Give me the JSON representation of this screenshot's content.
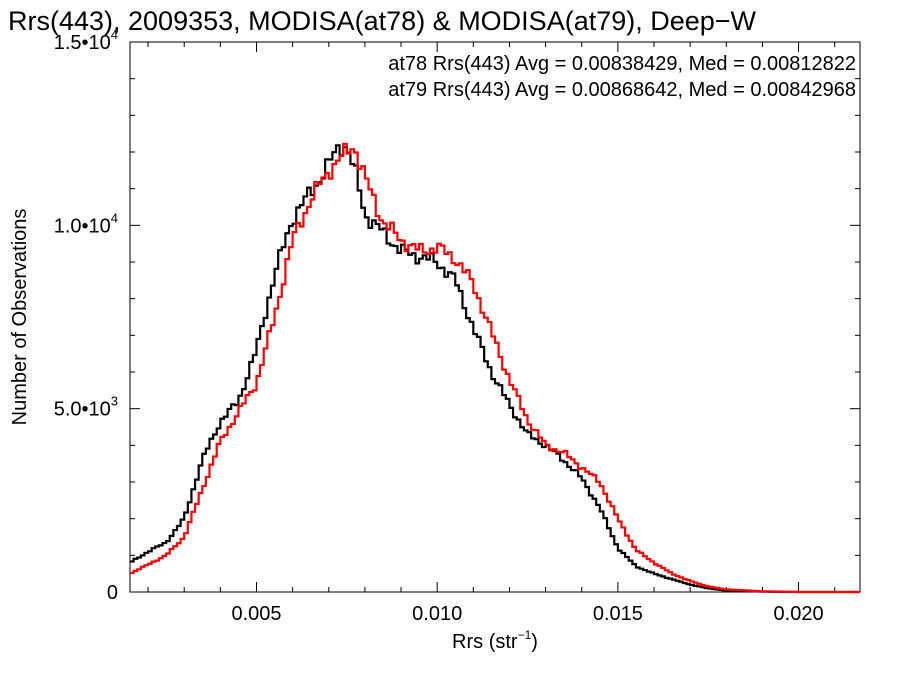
{
  "colors": {
    "at78": "#000000",
    "at79": "#ff0000",
    "axis": "#000000"
  },
  "chart_data": {
    "type": "line",
    "step": true,
    "title": "Rrs(443), 2009353, MODISA(at78) & MODISA(at79), Deep−W",
    "xlabel_main": "Rrs (str",
    "xlabel_sup": "−1",
    "xlabel_close": ")",
    "ylabel": "Number of Observations",
    "xlim": [
      0.0015,
      0.0217
    ],
    "ylim": [
      0,
      15000
    ],
    "grid": false,
    "legend_position": "top-right",
    "x_ticks": [
      {
        "value": 0.005,
        "label": "0.005"
      },
      {
        "value": 0.01,
        "label": "0.010"
      },
      {
        "value": 0.015,
        "label": "0.015"
      },
      {
        "value": 0.02,
        "label": "0.020"
      }
    ],
    "y_ticks": [
      {
        "value": 0,
        "mant": "0",
        "exp": ""
      },
      {
        "value": 5000,
        "mant": "5.0•10",
        "exp": "3"
      },
      {
        "value": 10000,
        "mant": "1.0•10",
        "exp": "4"
      },
      {
        "value": 15000,
        "mant": "1.5•10",
        "exp": "4"
      }
    ],
    "annotations": [
      "at78 Rrs(443) Avg = 0.00838429, Med = 0.00812822",
      "at79 Rrs(443) Avg = 0.00868642, Med = 0.00842968"
    ],
    "series": [
      {
        "key": "at78",
        "x": [
          0.0015,
          0.002,
          0.0025,
          0.003,
          0.0035,
          0.004,
          0.0045,
          0.005,
          0.0055,
          0.006,
          0.0065,
          0.007,
          0.0073,
          0.0075,
          0.0078,
          0.008,
          0.0085,
          0.009,
          0.0095,
          0.01,
          0.0105,
          0.011,
          0.0115,
          0.012,
          0.0125,
          0.013,
          0.0135,
          0.014,
          0.0145,
          0.015,
          0.0155,
          0.016,
          0.0165,
          0.017,
          0.0175,
          0.018,
          0.019,
          0.02,
          0.021,
          0.0217
        ],
        "y": [
          800,
          1100,
          1350,
          2000,
          3600,
          4650,
          5200,
          6600,
          8650,
          10200,
          10900,
          11650,
          12200,
          12150,
          11200,
          10300,
          9800,
          9300,
          9150,
          9000,
          8500,
          7200,
          6000,
          5100,
          4300,
          4000,
          3600,
          3100,
          2300,
          1200,
          700,
          500,
          350,
          200,
          100,
          40,
          10,
          0,
          0,
          0
        ]
      },
      {
        "key": "at79",
        "x": [
          0.0015,
          0.002,
          0.0025,
          0.003,
          0.0035,
          0.004,
          0.0045,
          0.005,
          0.0055,
          0.006,
          0.0065,
          0.007,
          0.0075,
          0.0077,
          0.008,
          0.0085,
          0.009,
          0.0095,
          0.01,
          0.0105,
          0.011,
          0.0115,
          0.012,
          0.0125,
          0.013,
          0.0135,
          0.014,
          0.0145,
          0.015,
          0.0155,
          0.016,
          0.0165,
          0.017,
          0.0175,
          0.018,
          0.019,
          0.02,
          0.021,
          0.0217
        ],
        "y": [
          500,
          750,
          1000,
          1500,
          2800,
          4100,
          4900,
          5700,
          7500,
          9600,
          10700,
          11500,
          12000,
          12200,
          11300,
          10100,
          9600,
          9300,
          9400,
          9100,
          8400,
          7100,
          5800,
          4700,
          4000,
          3800,
          3400,
          3000,
          2000,
          1150,
          800,
          500,
          300,
          150,
          70,
          20,
          0,
          0,
          0
        ]
      }
    ]
  }
}
